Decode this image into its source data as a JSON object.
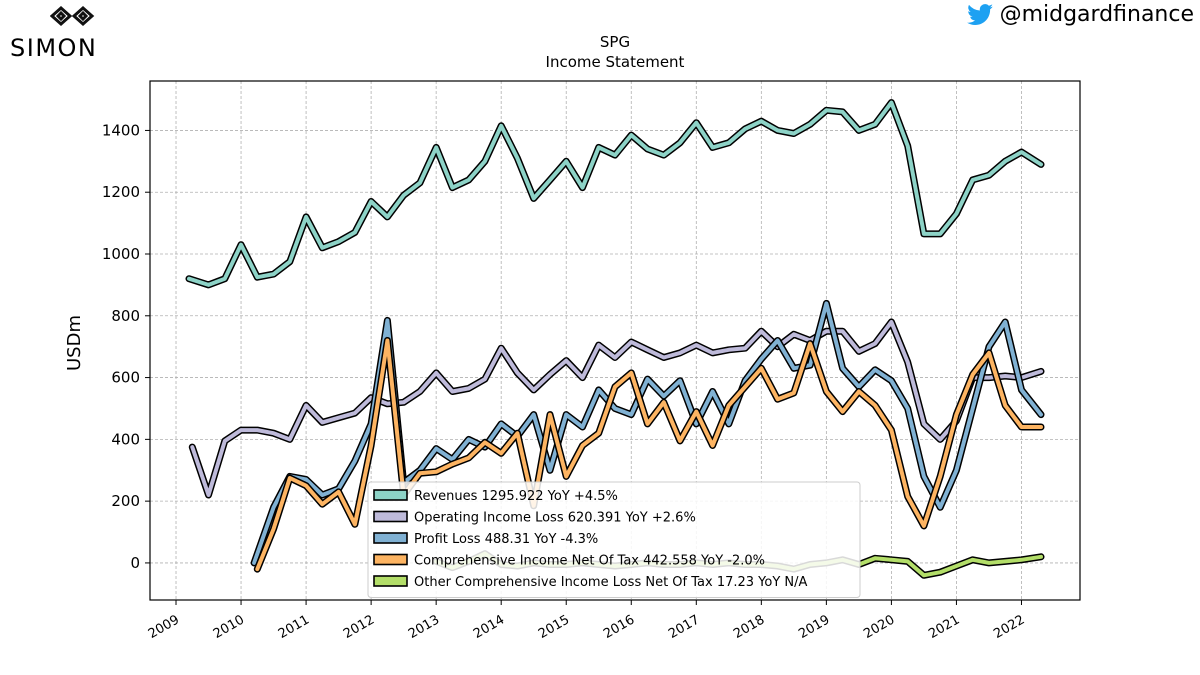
{
  "brand": {
    "logo_text": "SIMON",
    "handle": "@midgardfinance"
  },
  "chart_data": {
    "type": "line",
    "title": "SPG",
    "subtitle": "Income Statement",
    "xlabel": "",
    "ylabel": "USDm",
    "xlim": [
      2008.6,
      2022.9
    ],
    "ylim": [
      -120,
      1560
    ],
    "yticks": [
      0,
      200,
      400,
      600,
      800,
      1000,
      1200,
      1400
    ],
    "xticks": [
      2009,
      2010,
      2011,
      2012,
      2013,
      2014,
      2015,
      2016,
      2017,
      2018,
      2019,
      2020,
      2021,
      2022
    ],
    "grid": true,
    "legend_position": "lower-center",
    "series": [
      {
        "name": "Revenues",
        "legend_label": "Revenues 1295.922 YoY +4.5%",
        "color": "#8dd3c7",
        "x": [
          2009.2,
          2009.5,
          2009.75,
          2010.0,
          2010.25,
          2010.5,
          2010.75,
          2011.0,
          2011.25,
          2011.5,
          2011.75,
          2012.0,
          2012.25,
          2012.5,
          2012.75,
          2013.0,
          2013.25,
          2013.5,
          2013.75,
          2014.0,
          2014.25,
          2014.5,
          2014.75,
          2015.0,
          2015.25,
          2015.5,
          2015.75,
          2016.0,
          2016.25,
          2016.5,
          2016.75,
          2017.0,
          2017.25,
          2017.5,
          2017.75,
          2018.0,
          2018.25,
          2018.5,
          2018.75,
          2019.0,
          2019.25,
          2019.5,
          2019.75,
          2020.0,
          2020.25,
          2020.5,
          2020.75,
          2021.0,
          2021.25,
          2021.5,
          2021.75,
          2022.0,
          2022.3
        ],
        "y": [
          920,
          900,
          920,
          1030,
          925,
          935,
          975,
          1120,
          1020,
          1040,
          1070,
          1170,
          1120,
          1190,
          1230,
          1345,
          1215,
          1240,
          1300,
          1415,
          1310,
          1180,
          1240,
          1300,
          1215,
          1345,
          1320,
          1385,
          1340,
          1320,
          1360,
          1425,
          1345,
          1360,
          1405,
          1430,
          1400,
          1390,
          1420,
          1465,
          1460,
          1400,
          1420,
          1490,
          1350,
          1065,
          1065,
          1130,
          1240,
          1255,
          1300,
          1330,
          1290
        ]
      },
      {
        "name": "Operating Income Loss",
        "legend_label": "Operating Income Loss 620.391 YoY +2.6%",
        "color": "#bebada",
        "x": [
          2009.25,
          2009.5,
          2009.75,
          2010.0,
          2010.25,
          2010.5,
          2010.75,
          2011.0,
          2011.25,
          2011.5,
          2011.75,
          2012.0,
          2012.25,
          2012.5,
          2012.75,
          2013.0,
          2013.25,
          2013.5,
          2013.75,
          2014.0,
          2014.25,
          2014.5,
          2014.75,
          2015.0,
          2015.25,
          2015.5,
          2015.75,
          2016.0,
          2016.25,
          2016.5,
          2016.75,
          2017.0,
          2017.25,
          2017.5,
          2017.75,
          2018.0,
          2018.25,
          2018.5,
          2018.75,
          2019.0,
          2019.25,
          2019.5,
          2019.75,
          2020.0,
          2020.25,
          2020.5,
          2020.75,
          2021.0,
          2021.25,
          2021.5,
          2021.75,
          2022.0,
          2022.3
        ],
        "y": [
          375,
          220,
          395,
          430,
          430,
          420,
          400,
          510,
          455,
          470,
          485,
          535,
          515,
          520,
          555,
          615,
          555,
          565,
          595,
          695,
          615,
          560,
          610,
          655,
          600,
          705,
          665,
          715,
          690,
          665,
          680,
          705,
          680,
          690,
          695,
          750,
          700,
          740,
          720,
          750,
          750,
          685,
          710,
          780,
          650,
          450,
          400,
          460,
          600,
          600,
          605,
          600,
          620
        ]
      },
      {
        "name": "Profit Loss",
        "legend_label": "Profit Loss 488.31 YoY -4.3%",
        "color": "#80b1d3",
        "x": [
          2010.2,
          2010.5,
          2010.75,
          2011.0,
          2011.25,
          2011.5,
          2011.75,
          2012.0,
          2012.25,
          2012.5,
          2012.75,
          2013.0,
          2013.25,
          2013.5,
          2013.75,
          2014.0,
          2014.25,
          2014.5,
          2014.75,
          2015.0,
          2015.25,
          2015.5,
          2015.75,
          2016.0,
          2016.25,
          2016.5,
          2016.75,
          2017.0,
          2017.25,
          2017.5,
          2017.75,
          2018.0,
          2018.25,
          2018.5,
          2018.75,
          2019.0,
          2019.25,
          2019.5,
          2019.75,
          2020.0,
          2020.25,
          2020.5,
          2020.75,
          2021.0,
          2021.25,
          2021.5,
          2021.75,
          2022.0,
          2022.3
        ],
        "y": [
          0,
          180,
          280,
          270,
          220,
          240,
          330,
          450,
          785,
          260,
          300,
          370,
          335,
          400,
          375,
          450,
          410,
          480,
          300,
          480,
          440,
          560,
          500,
          480,
          595,
          540,
          590,
          450,
          555,
          450,
          590,
          660,
          720,
          630,
          640,
          840,
          630,
          570,
          625,
          590,
          500,
          280,
          180,
          300,
          500,
          700,
          780,
          560,
          480
        ]
      },
      {
        "name": "Comprehensive Income Net Of Tax",
        "legend_label": "Comprehensive Income Net Of Tax 442.558 YoY -2.0%",
        "color": "#fdb462",
        "x": [
          2010.25,
          2010.5,
          2010.75,
          2011.0,
          2011.25,
          2011.5,
          2011.75,
          2012.0,
          2012.25,
          2012.5,
          2012.75,
          2013.0,
          2013.25,
          2013.5,
          2013.75,
          2014.0,
          2014.25,
          2014.5,
          2014.75,
          2015.0,
          2015.25,
          2015.5,
          2015.75,
          2016.0,
          2016.25,
          2016.5,
          2016.75,
          2017.0,
          2017.25,
          2017.5,
          2017.75,
          2018.0,
          2018.25,
          2018.5,
          2018.75,
          2019.0,
          2019.25,
          2019.5,
          2019.75,
          2020.0,
          2020.25,
          2020.5,
          2020.75,
          2021.0,
          2021.25,
          2021.5,
          2021.75,
          2022.0,
          2022.3
        ],
        "y": [
          -20,
          110,
          275,
          250,
          190,
          230,
          125,
          380,
          720,
          220,
          290,
          295,
          320,
          340,
          390,
          355,
          420,
          185,
          480,
          280,
          380,
          420,
          570,
          615,
          450,
          520,
          395,
          490,
          380,
          510,
          570,
          630,
          530,
          550,
          710,
          555,
          490,
          555,
          510,
          430,
          215,
          120,
          280,
          480,
          610,
          680,
          510,
          440,
          440
        ]
      },
      {
        "name": "Other Comprehensive Income Loss Net Of Tax",
        "legend_label": "Other Comprehensive Income Loss Net Of Tax 17.23 YoY N/A",
        "color": "#b3de69",
        "x": [
          2013.0,
          2013.25,
          2013.5,
          2013.75,
          2014.0,
          2014.25,
          2014.5,
          2014.75,
          2015.0,
          2015.25,
          2015.5,
          2015.75,
          2016.0,
          2016.25,
          2016.5,
          2016.75,
          2017.0,
          2017.25,
          2017.5,
          2017.75,
          2018.0,
          2018.25,
          2018.5,
          2018.75,
          2019.0,
          2019.25,
          2019.5,
          2019.75,
          2020.0,
          2020.25,
          2020.5,
          2020.75,
          2021.0,
          2021.25,
          2021.5,
          2021.75,
          2022.0,
          2022.3
        ],
        "y": [
          5,
          -15,
          5,
          30,
          -5,
          -10,
          0,
          -5,
          -5,
          0,
          -5,
          -10,
          -5,
          0,
          -5,
          -5,
          0,
          -5,
          0,
          -5,
          -5,
          -10,
          -20,
          -5,
          0,
          10,
          -5,
          15,
          10,
          5,
          -40,
          -30,
          -10,
          10,
          0,
          5,
          10,
          20
        ]
      }
    ]
  }
}
